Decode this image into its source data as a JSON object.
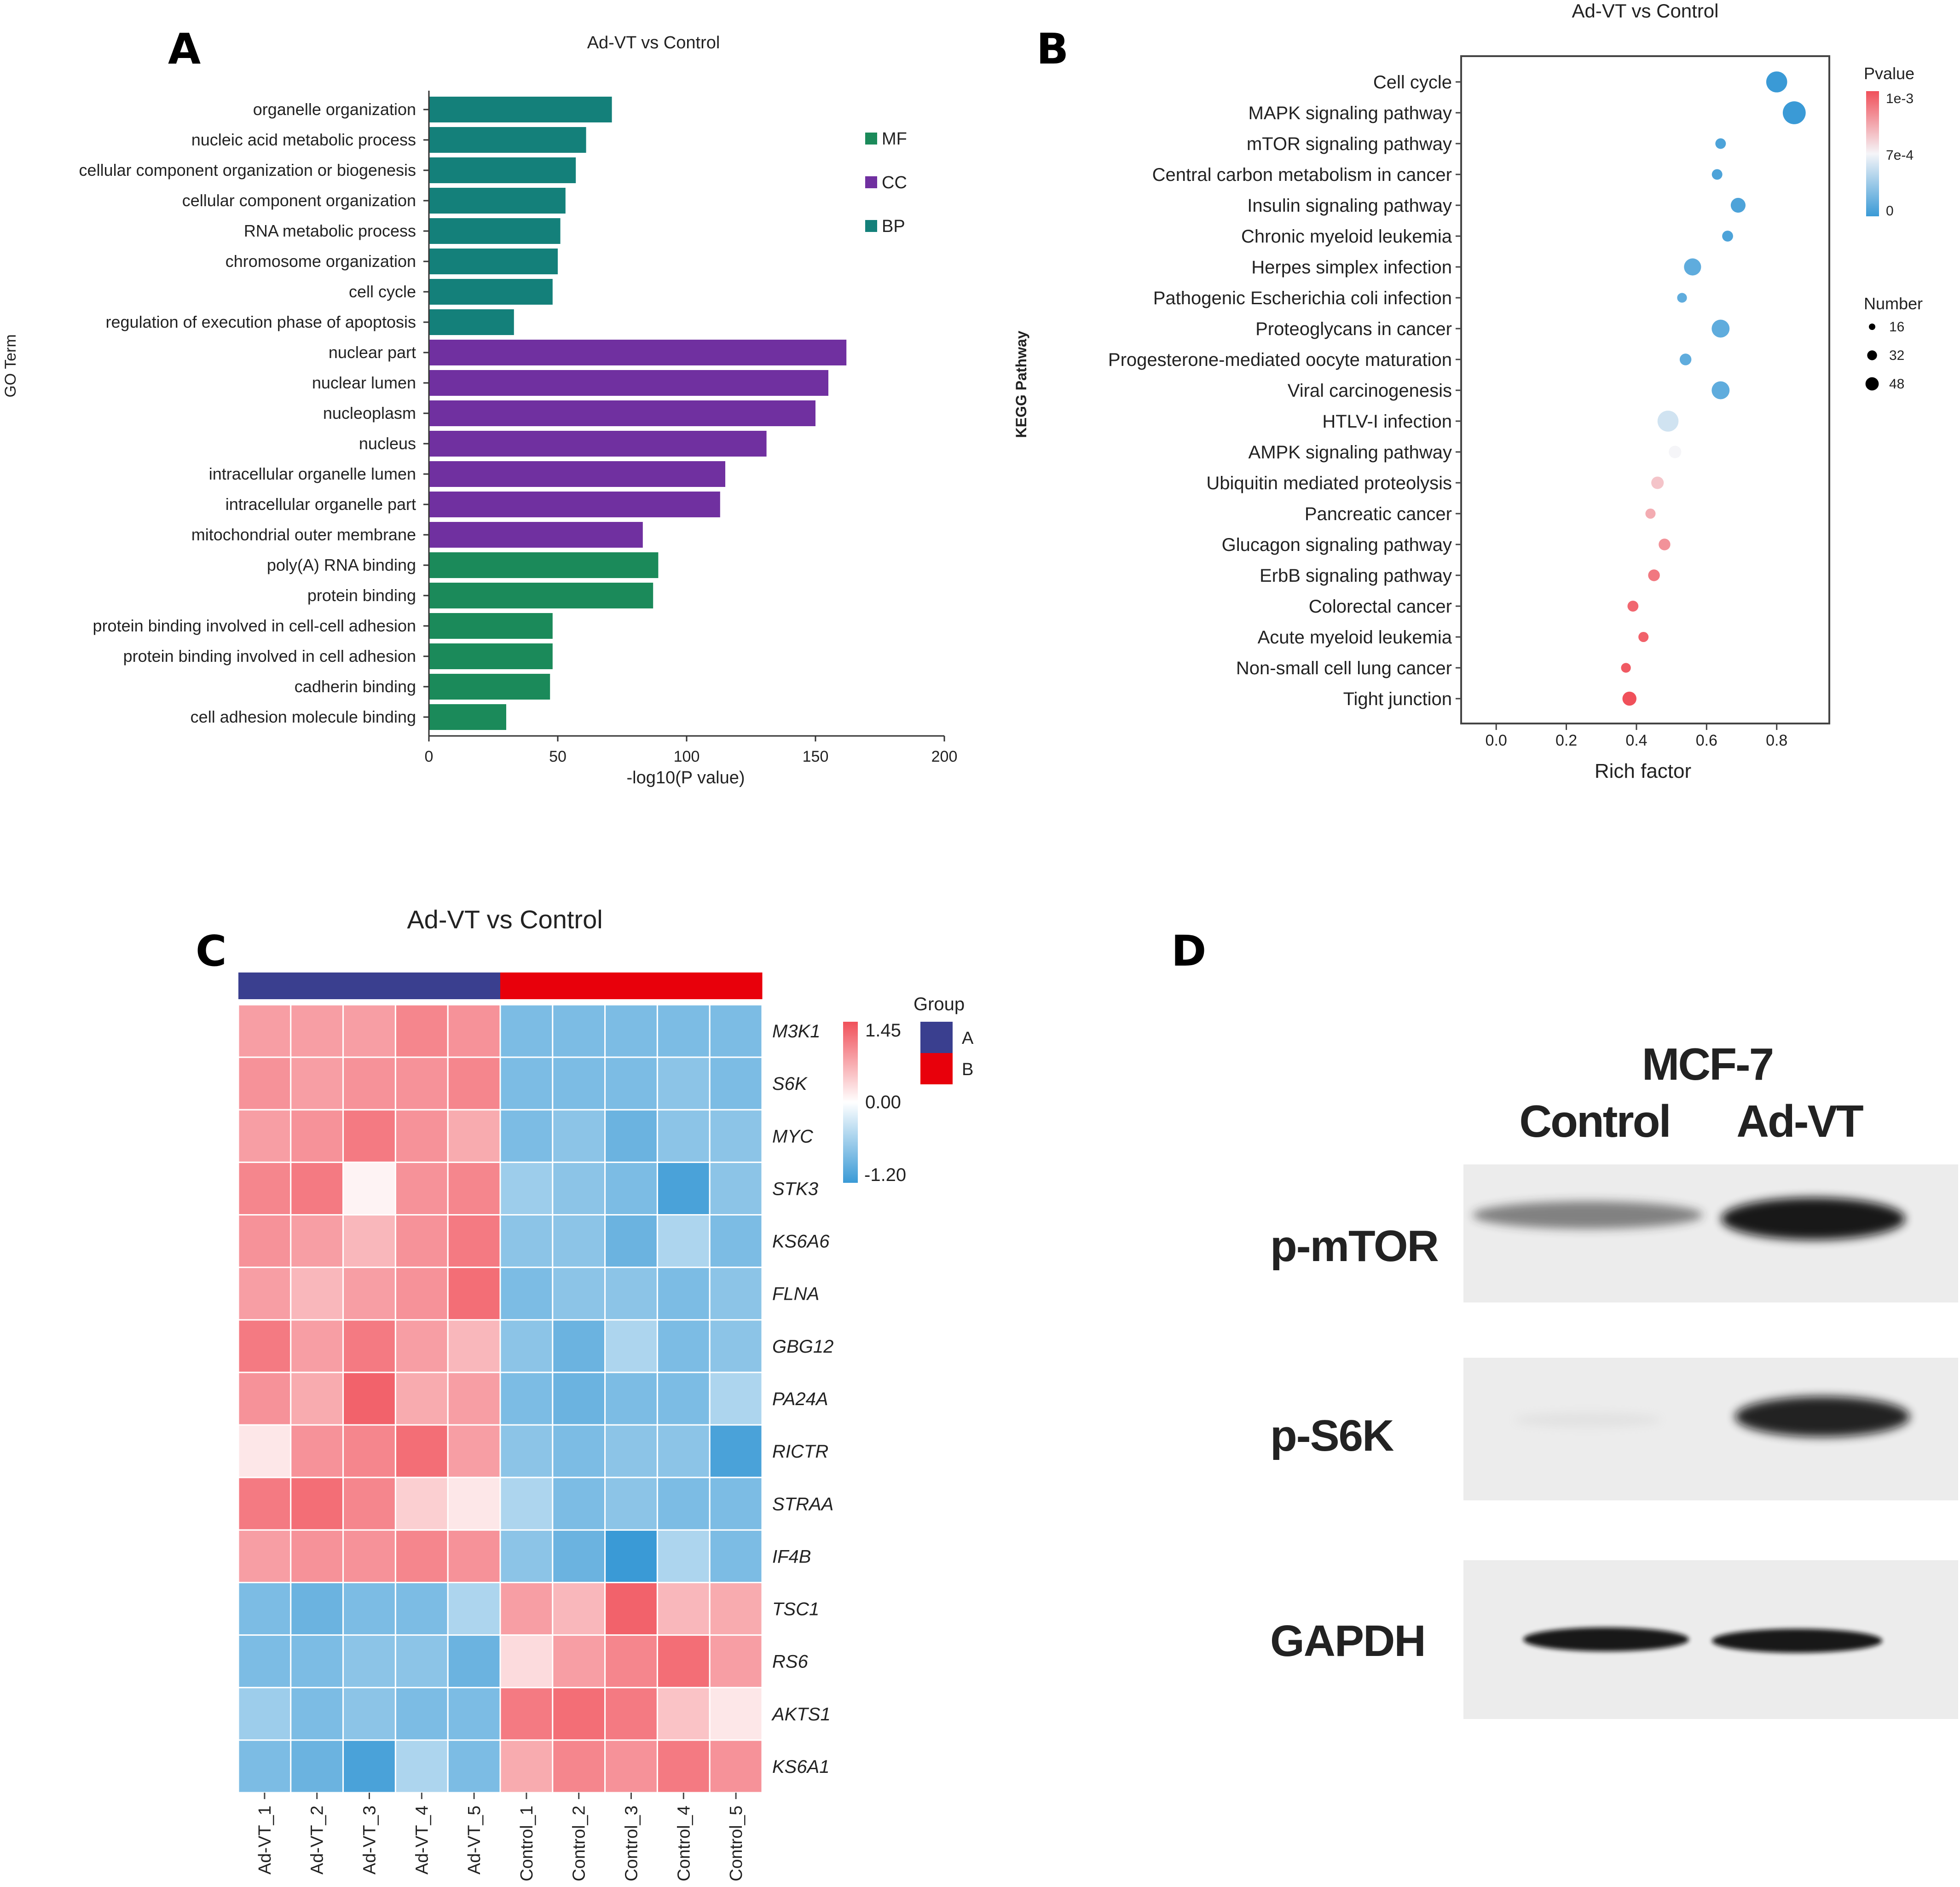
{
  "figure": {
    "background": "#ffffff"
  },
  "chart_data": [
    {
      "panel": "A",
      "type": "bar",
      "orientation": "horizontal",
      "title": "Ad-VT vs Control",
      "xlabel": "-log10(P value)",
      "ylabel": "GO Term",
      "xlim": [
        0,
        200
      ],
      "xticks": [
        "0",
        "50",
        "100",
        "150",
        "200"
      ],
      "legend": [
        {
          "label": "MF",
          "color": "#1b8a5a"
        },
        {
          "label": "CC",
          "color": "#7030a0"
        },
        {
          "label": "BP",
          "color": "#14807a"
        }
      ],
      "categories": [
        "organelle organization",
        "nucleic acid metabolic process",
        "cellular component organization or biogenesis",
        "cellular component organization",
        "RNA metabolic process",
        "chromosome organization",
        "cell cycle",
        "regulation of execution phase of apoptosis",
        "nuclear part",
        "nuclear lumen",
        "nucleoplasm",
        "nucleus",
        "intracellular organelle lumen",
        "intracellular organelle part",
        "mitochondrial outer membrane",
        "poly(A) RNA binding",
        "protein binding",
        "protein binding involved in cell-cell adhesion",
        "protein binding involved in cell adhesion",
        "cadherin binding",
        "cell adhesion molecule binding"
      ],
      "values": [
        71,
        61,
        57,
        53,
        51,
        50,
        48,
        33,
        162,
        155,
        150,
        131,
        115,
        113,
        83,
        89,
        87,
        48,
        48,
        47,
        30
      ],
      "groups": [
        "BP",
        "BP",
        "BP",
        "BP",
        "BP",
        "BP",
        "BP",
        "BP",
        "CC",
        "CC",
        "CC",
        "CC",
        "CC",
        "CC",
        "CC",
        "MF",
        "MF",
        "MF",
        "MF",
        "MF",
        "MF"
      ]
    },
    {
      "panel": "B",
      "type": "scatter",
      "title": "Ad-VT vs Control",
      "xlabel": "Rich factor",
      "ylabel": "KEGG Pathway",
      "xlim": [
        -0.1,
        0.95
      ],
      "xticks": [
        "0.0",
        "0.2",
        "0.4",
        "0.6",
        "0.8"
      ],
      "xtick_values": [
        0,
        0.2,
        0.4,
        0.6,
        0.8
      ],
      "color_legend": {
        "title": "Pvalue",
        "labels": [
          "1e-3",
          "7e-4",
          "0"
        ]
      },
      "size_legend": {
        "title": "Number",
        "labels": [
          "16",
          "32",
          "48"
        ],
        "values": [
          16,
          32,
          48
        ]
      },
      "points": [
        {
          "pathway": "Cell cycle",
          "rich_factor": 0.8,
          "number": 40,
          "pvalue": 0.0
        },
        {
          "pathway": "MAPK signaling pathway",
          "rich_factor": 0.85,
          "number": 45,
          "pvalue": 0.0
        },
        {
          "pathway": "mTOR signaling pathway",
          "rich_factor": 0.64,
          "number": 13,
          "pvalue": 5e-05
        },
        {
          "pathway": "Central carbon metabolism in cancer",
          "rich_factor": 0.63,
          "number": 13,
          "pvalue": 5e-05
        },
        {
          "pathway": "Insulin signaling pathway",
          "rich_factor": 0.69,
          "number": 24,
          "pvalue": 5e-05
        },
        {
          "pathway": "Chronic myeloid leukemia",
          "rich_factor": 0.66,
          "number": 14,
          "pvalue": 5e-05
        },
        {
          "pathway": "Herpes simplex infection",
          "rich_factor": 0.56,
          "number": 30,
          "pvalue": 0.0001
        },
        {
          "pathway": "Pathogenic Escherichia coli infection",
          "rich_factor": 0.53,
          "number": 11,
          "pvalue": 0.0001
        },
        {
          "pathway": "Proteoglycans in cancer",
          "rich_factor": 0.64,
          "number": 32,
          "pvalue": 0.0001
        },
        {
          "pathway": "Progesterone-mediated oocyte maturation",
          "rich_factor": 0.54,
          "number": 16,
          "pvalue": 0.0001
        },
        {
          "pathway": "Viral carcinogenesis",
          "rich_factor": 0.64,
          "number": 32,
          "pvalue": 0.0001
        },
        {
          "pathway": "HTLV-I infection",
          "rich_factor": 0.49,
          "number": 40,
          "pvalue": 0.0004
        },
        {
          "pathway": "AMPK signaling pathway",
          "rich_factor": 0.51,
          "number": 18,
          "pvalue": 0.0005
        },
        {
          "pathway": "Ubiquitin mediated proteolysis",
          "rich_factor": 0.46,
          "number": 18,
          "pvalue": 0.00065
        },
        {
          "pathway": "Pancreatic cancer",
          "rich_factor": 0.44,
          "number": 12,
          "pvalue": 0.00072
        },
        {
          "pathway": "Glucagon signaling pathway",
          "rich_factor": 0.48,
          "number": 16,
          "pvalue": 0.0008
        },
        {
          "pathway": "ErbB signaling pathway",
          "rich_factor": 0.45,
          "number": 16,
          "pvalue": 0.00088
        },
        {
          "pathway": "Colorectal cancer",
          "rich_factor": 0.39,
          "number": 14,
          "pvalue": 0.00093
        },
        {
          "pathway": "Acute myeloid leukemia",
          "rich_factor": 0.42,
          "number": 12,
          "pvalue": 0.00095
        },
        {
          "pathway": "Non-small cell lung cancer",
          "rich_factor": 0.37,
          "number": 11,
          "pvalue": 0.00097
        },
        {
          "pathway": "Tight junction",
          "rich_factor": 0.38,
          "number": 22,
          "pvalue": 0.001
        }
      ]
    },
    {
      "panel": "C",
      "type": "heatmap",
      "title": "Ad-VT vs Control",
      "columns": [
        "Ad-VT_1",
        "Ad-VT_2",
        "Ad-VT_3",
        "Ad-VT_4",
        "Ad-VT_5",
        "Control_1",
        "Control_2",
        "Control_3",
        "Control_4",
        "Control_5"
      ],
      "column_groups": [
        "A",
        "A",
        "A",
        "A",
        "A",
        "B",
        "B",
        "B",
        "B",
        "B"
      ],
      "group_legend": {
        "title": "Group",
        "labels": [
          "A",
          "B"
        ],
        "colors": [
          "#3a3f8f",
          "#e8000b"
        ]
      },
      "color_scale": {
        "max_label": "1.45",
        "mid_label": "0.00",
        "min_label": "-1.20",
        "max": 1.45,
        "min": -1.2
      },
      "rows": [
        "M3K1",
        "S6K",
        "MYC",
        "STK3",
        "KS6A6",
        "FLNA",
        "GBG12",
        "PA24A",
        "RICTR",
        "STRAA",
        "IF4B",
        "TSC1",
        "RS6",
        "AKTS1",
        "KS6A1"
      ],
      "values": [
        [
          0.8,
          0.8,
          0.8,
          1.0,
          0.9,
          -0.8,
          -0.8,
          -0.8,
          -0.8,
          -0.8
        ],
        [
          0.9,
          0.8,
          0.9,
          0.9,
          1.0,
          -0.8,
          -0.8,
          -0.8,
          -0.7,
          -0.8
        ],
        [
          0.8,
          0.9,
          1.1,
          0.9,
          0.7,
          -0.8,
          -0.7,
          -0.9,
          -0.7,
          -0.7
        ],
        [
          1.0,
          1.1,
          0.1,
          0.9,
          1.0,
          -0.6,
          -0.7,
          -0.8,
          -1.1,
          -0.7
        ],
        [
          0.9,
          0.8,
          0.6,
          0.9,
          1.1,
          -0.7,
          -0.7,
          -0.9,
          -0.5,
          -0.8
        ],
        [
          0.8,
          0.6,
          0.8,
          0.9,
          1.2,
          -0.8,
          -0.7,
          -0.7,
          -0.8,
          -0.7
        ],
        [
          1.1,
          0.8,
          1.1,
          0.8,
          0.6,
          -0.7,
          -0.9,
          -0.5,
          -0.8,
          -0.7
        ],
        [
          0.9,
          0.7,
          1.3,
          0.7,
          0.8,
          -0.8,
          -0.9,
          -0.8,
          -0.8,
          -0.5
        ],
        [
          0.2,
          0.9,
          1.0,
          1.2,
          0.8,
          -0.7,
          -0.8,
          -0.7,
          -0.7,
          -1.1
        ],
        [
          1.1,
          1.2,
          1.0,
          0.4,
          0.2,
          -0.5,
          -0.8,
          -0.7,
          -0.8,
          -0.8
        ],
        [
          0.8,
          0.9,
          0.9,
          1.0,
          0.9,
          -0.7,
          -0.9,
          -1.2,
          -0.5,
          -0.8
        ],
        [
          -0.8,
          -0.9,
          -0.8,
          -0.8,
          -0.5,
          0.8,
          0.6,
          1.3,
          0.6,
          0.7
        ],
        [
          -0.8,
          -0.8,
          -0.7,
          -0.7,
          -0.9,
          0.3,
          0.8,
          1.0,
          1.2,
          0.8
        ],
        [
          -0.6,
          -0.8,
          -0.7,
          -0.8,
          -0.8,
          1.1,
          1.2,
          1.1,
          0.5,
          0.2
        ],
        [
          -0.8,
          -0.9,
          -1.1,
          -0.5,
          -0.8,
          0.7,
          1.0,
          0.9,
          1.1,
          0.9
        ]
      ]
    }
  ],
  "western_blot": {
    "panel": "D",
    "cell_line": "MCF-7",
    "lanes": [
      "Control",
      "Ad-VT"
    ],
    "proteins": [
      {
        "label": "p-mTOR",
        "intensities": [
          0.45,
          0.95
        ]
      },
      {
        "label": "p-S6K",
        "intensities": [
          0.03,
          0.85
        ]
      },
      {
        "label": "GAPDH",
        "intensities": [
          0.9,
          0.9
        ]
      }
    ]
  }
}
